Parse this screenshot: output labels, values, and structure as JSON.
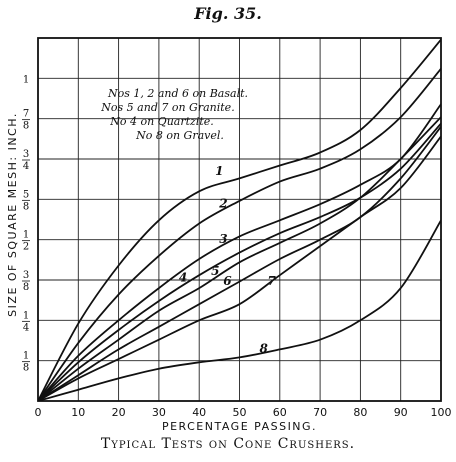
{
  "figure_title": "Fig. 35.",
  "caption": "Typical Tests on Cone Crushers.",
  "chart_data": {
    "type": "line",
    "title": "Fig. 35.",
    "caption": "Typical Tests on Cone Crushers.",
    "xlabel": "PERCENTAGE PASSING.",
    "ylabel": "SIZE OF SQUARE MESH: INCH.",
    "xlim": [
      0,
      100
    ],
    "ylim": [
      0,
      1.125
    ],
    "grid": true,
    "x_ticks": [
      "0",
      "10",
      "20",
      "30",
      "40",
      "50",
      "60",
      "70",
      "80",
      "90",
      "100"
    ],
    "y_ticks": [
      {
        "label": "1/8",
        "num": "1",
        "den": "8",
        "value": 0.125
      },
      {
        "label": "1/4",
        "num": "1",
        "den": "4",
        "value": 0.25
      },
      {
        "label": "3/8",
        "num": "3",
        "den": "8",
        "value": 0.375
      },
      {
        "label": "1/2",
        "num": "1",
        "den": "2",
        "value": 0.5
      },
      {
        "label": "5/8",
        "num": "5",
        "den": "8",
        "value": 0.625
      },
      {
        "label": "3/4",
        "num": "3",
        "den": "4",
        "value": 0.75
      },
      {
        "label": "7/8",
        "num": "7",
        "den": "8",
        "value": 0.875
      },
      {
        "label": "1",
        "num": "1",
        "den": "",
        "value": 1.0
      }
    ],
    "legend": [
      "Nos 1, 2 and 6 on Basalt.",
      "Nos 5 and 7 on Granite.",
      "No 4 on Quartzite.",
      "No 8 on Gravel."
    ],
    "legend_placement": "top-left",
    "series": [
      {
        "name": "1",
        "x": [
          0,
          10,
          20,
          30,
          40,
          50,
          60,
          70,
          80,
          90,
          100
        ],
        "y": [
          0,
          0.24,
          0.42,
          0.56,
          0.65,
          0.69,
          0.73,
          0.77,
          0.84,
          0.97,
          1.12
        ]
      },
      {
        "name": "2",
        "x": [
          0,
          10,
          20,
          30,
          40,
          50,
          60,
          70,
          80,
          90,
          100
        ],
        "y": [
          0,
          0.18,
          0.33,
          0.45,
          0.55,
          0.62,
          0.68,
          0.72,
          0.78,
          0.88,
          1.03
        ]
      },
      {
        "name": "3",
        "x": [
          0,
          10,
          20,
          30,
          40,
          50,
          60,
          70,
          80,
          90,
          100
        ],
        "y": [
          0,
          0.14,
          0.25,
          0.35,
          0.44,
          0.51,
          0.56,
          0.61,
          0.67,
          0.75,
          0.92
        ]
      },
      {
        "name": "4",
        "x": [
          0,
          10,
          20,
          30,
          40,
          50,
          60,
          70,
          80,
          90,
          100
        ],
        "y": [
          0,
          0.12,
          0.22,
          0.31,
          0.39,
          0.46,
          0.52,
          0.57,
          0.63,
          0.72,
          0.86
        ]
      },
      {
        "name": "5",
        "x": [
          0,
          10,
          20,
          30,
          40,
          50,
          60,
          70,
          80,
          90,
          100
        ],
        "y": [
          0,
          0.1,
          0.19,
          0.28,
          0.35,
          0.43,
          0.49,
          0.55,
          0.63,
          0.75,
          0.88
        ]
      },
      {
        "name": "6",
        "x": [
          0,
          10,
          20,
          30,
          40,
          50,
          60,
          70,
          80,
          90,
          100
        ],
        "y": [
          0,
          0.08,
          0.16,
          0.23,
          0.3,
          0.37,
          0.44,
          0.5,
          0.57,
          0.69,
          0.85
        ]
      },
      {
        "name": "7",
        "x": [
          0,
          10,
          20,
          30,
          40,
          50,
          60,
          70,
          80,
          90,
          100
        ],
        "y": [
          0,
          0.07,
          0.13,
          0.19,
          0.25,
          0.3,
          0.39,
          0.48,
          0.57,
          0.66,
          0.82
        ]
      },
      {
        "name": "8",
        "x": [
          0,
          10,
          20,
          30,
          40,
          50,
          60,
          70,
          80,
          90,
          100
        ],
        "y": [
          0,
          0.035,
          0.07,
          0.1,
          0.12,
          0.135,
          0.16,
          0.19,
          0.25,
          0.35,
          0.56
        ]
      }
    ],
    "curve_label_positions": [
      {
        "name": "1",
        "x": 45,
        "y": 0.7
      },
      {
        "name": "2",
        "x": 46,
        "y": 0.6
      },
      {
        "name": "3",
        "x": 46,
        "y": 0.49
      },
      {
        "name": "4",
        "x": 36,
        "y": 0.37
      },
      {
        "name": "5",
        "x": 44,
        "y": 0.39
      },
      {
        "name": "6",
        "x": 47,
        "y": 0.36
      },
      {
        "name": "7",
        "x": 58,
        "y": 0.36
      },
      {
        "name": "8",
        "x": 56,
        "y": 0.15
      }
    ]
  }
}
